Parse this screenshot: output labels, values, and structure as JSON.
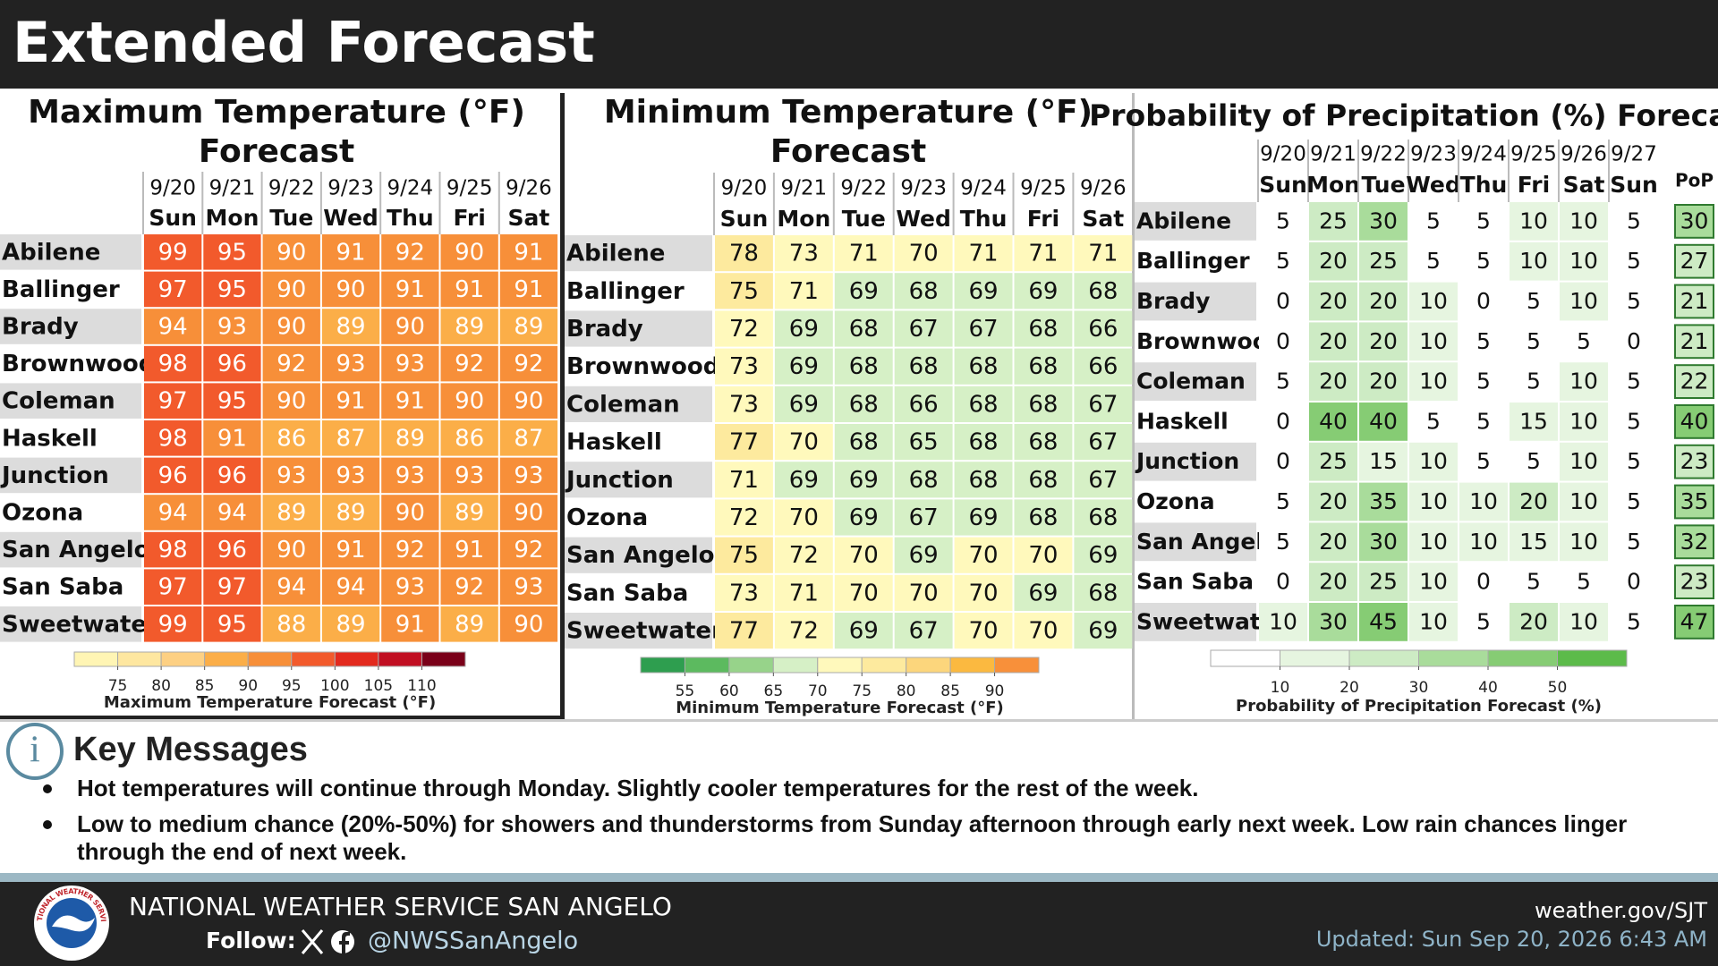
{
  "header": {
    "title": "Extended Forecast"
  },
  "tables": [
    {
      "title_lines": [
        "Maximum Temperature (°F)",
        "Forecast"
      ],
      "dates": [
        "9/20",
        "9/21",
        "9/22",
        "9/23",
        "9/24",
        "9/25",
        "9/26"
      ],
      "days": [
        "Sun",
        "Mon",
        "Tue",
        "Wed",
        "Thu",
        "Fri",
        "Sat"
      ],
      "rows": [
        {
          "city": "Abilene",
          "values": [
            99,
            95,
            90,
            91,
            92,
            90,
            91
          ]
        },
        {
          "city": "Ballinger",
          "values": [
            97,
            95,
            90,
            90,
            91,
            91,
            91
          ]
        },
        {
          "city": "Brady",
          "values": [
            94,
            93,
            90,
            89,
            90,
            89,
            89
          ]
        },
        {
          "city": "Brownwood",
          "values": [
            98,
            96,
            92,
            93,
            93,
            92,
            92
          ]
        },
        {
          "city": "Coleman",
          "values": [
            97,
            95,
            90,
            91,
            91,
            90,
            90
          ]
        },
        {
          "city": "Haskell",
          "values": [
            98,
            91,
            86,
            87,
            89,
            86,
            87
          ]
        },
        {
          "city": "Junction",
          "values": [
            96,
            96,
            93,
            93,
            93,
            93,
            93
          ]
        },
        {
          "city": "Ozona",
          "values": [
            94,
            94,
            89,
            89,
            90,
            89,
            90
          ]
        },
        {
          "city": "San Angelo",
          "values": [
            98,
            96,
            90,
            91,
            92,
            91,
            92
          ]
        },
        {
          "city": "San Saba",
          "values": [
            97,
            97,
            94,
            94,
            93,
            92,
            93
          ]
        },
        {
          "city": "Sweetwater",
          "values": [
            99,
            95,
            88,
            89,
            91,
            89,
            90
          ]
        }
      ],
      "legend": {
        "ticks": [
          75,
          80,
          85,
          90,
          95,
          100,
          105,
          110
        ],
        "colors": [
          "#fff5b4",
          "#fee7a0",
          "#fdd083",
          "#fbae48",
          "#f78f39",
          "#f25a2c",
          "#e32a1e",
          "#c10f22",
          "#7a0019"
        ],
        "label": "Maximum Temperature Forecast (°F)"
      }
    },
    {
      "title_lines": [
        "Minimum Temperature (°F)",
        "Forecast"
      ],
      "dates": [
        "9/20",
        "9/21",
        "9/22",
        "9/23",
        "9/24",
        "9/25",
        "9/26"
      ],
      "days": [
        "Sun",
        "Mon",
        "Tue",
        "Wed",
        "Thu",
        "Fri",
        "Sat"
      ],
      "rows": [
        {
          "city": "Abilene",
          "values": [
            78,
            73,
            71,
            70,
            71,
            71,
            71
          ]
        },
        {
          "city": "Ballinger",
          "values": [
            75,
            71,
            69,
            68,
            69,
            69,
            68
          ]
        },
        {
          "city": "Brady",
          "values": [
            72,
            69,
            68,
            67,
            67,
            68,
            66
          ]
        },
        {
          "city": "Brownwood",
          "values": [
            73,
            69,
            68,
            68,
            68,
            68,
            66
          ]
        },
        {
          "city": "Coleman",
          "values": [
            73,
            69,
            68,
            66,
            68,
            68,
            67
          ]
        },
        {
          "city": "Haskell",
          "values": [
            77,
            70,
            68,
            65,
            68,
            68,
            67
          ]
        },
        {
          "city": "Junction",
          "values": [
            71,
            69,
            69,
            68,
            68,
            68,
            67
          ]
        },
        {
          "city": "Ozona",
          "values": [
            72,
            70,
            69,
            67,
            69,
            68,
            68
          ]
        },
        {
          "city": "San Angelo",
          "values": [
            75,
            72,
            70,
            69,
            70,
            70,
            69
          ]
        },
        {
          "city": "San Saba",
          "values": [
            73,
            71,
            70,
            70,
            70,
            69,
            68
          ]
        },
        {
          "city": "Sweetwater",
          "values": [
            77,
            72,
            69,
            67,
            70,
            70,
            69
          ]
        }
      ],
      "legend": {
        "ticks": [
          55,
          60,
          65,
          70,
          75,
          80,
          85,
          90
        ],
        "colors": [
          "#2e9e4f",
          "#5cba5f",
          "#97d38a",
          "#d6f0c6",
          "#fff9bc",
          "#fdea9e",
          "#fcd67c",
          "#fbb940",
          "#f8903a"
        ],
        "label": "Minimum Temperature Forecast (°F)"
      }
    },
    {
      "title_lines": [
        "Probability of Precipitation (%) Forecast"
      ],
      "dates": [
        "9/20",
        "9/21",
        "9/22",
        "9/23",
        "9/24",
        "9/25",
        "9/26",
        "9/27"
      ],
      "days": [
        "Sun",
        "Mon",
        "Tue",
        "Wed",
        "Thu",
        "Fri",
        "Sat",
        "Sun"
      ],
      "pop_header": "PoP",
      "rows": [
        {
          "city": "Abilene",
          "values": [
            5,
            25,
            30,
            5,
            5,
            10,
            10,
            5
          ],
          "pop": 30
        },
        {
          "city": "Ballinger",
          "values": [
            5,
            20,
            25,
            5,
            5,
            10,
            10,
            5
          ],
          "pop": 27
        },
        {
          "city": "Brady",
          "values": [
            0,
            20,
            20,
            10,
            0,
            5,
            10,
            5
          ],
          "pop": 21
        },
        {
          "city": "Brownwood",
          "values": [
            0,
            20,
            20,
            10,
            5,
            5,
            5,
            0
          ],
          "pop": 21
        },
        {
          "city": "Coleman",
          "values": [
            5,
            20,
            20,
            10,
            5,
            5,
            10,
            5
          ],
          "pop": 22
        },
        {
          "city": "Haskell",
          "values": [
            0,
            40,
            40,
            5,
            5,
            15,
            10,
            5
          ],
          "pop": 40
        },
        {
          "city": "Junction",
          "values": [
            0,
            25,
            15,
            10,
            5,
            5,
            10,
            5
          ],
          "pop": 23
        },
        {
          "city": "Ozona",
          "values": [
            5,
            20,
            35,
            10,
            10,
            20,
            10,
            5
          ],
          "pop": 35
        },
        {
          "city": "San Angelo",
          "values": [
            5,
            20,
            30,
            10,
            10,
            15,
            10,
            5
          ],
          "pop": 32
        },
        {
          "city": "San Saba",
          "values": [
            0,
            20,
            25,
            10,
            0,
            5,
            5,
            0
          ],
          "pop": 23
        },
        {
          "city": "Sweetwater",
          "values": [
            10,
            30,
            45,
            10,
            5,
            20,
            10,
            5
          ],
          "pop": 47
        }
      ],
      "legend": {
        "ticks": [
          10,
          20,
          30,
          40,
          50
        ],
        "colors": [
          "#ffffff",
          "#e6f5e0",
          "#cdebc4",
          "#a9dc9b",
          "#86cc74",
          "#5cbb4a"
        ],
        "label": "Probability of Precipitation Forecast (%)"
      }
    }
  ],
  "key_messages": {
    "title": "Key Messages",
    "items": [
      "Hot temperatures will continue through Monday. Slightly cooler temperatures for the rest of the week.",
      "Low to medium chance (20%-50%) for showers and thunderstorms from Sunday afternoon through early next week. Low rain chances linger through the end of next week."
    ]
  },
  "footer": {
    "office": "NATIONAL WEATHER SERVICE SAN ANGELO",
    "follow": "Follow:",
    "handle": "@NWSSanAngelo",
    "website": "weather.gov/SJT",
    "updated": "Updated: Sun Sep 20, 2026 6:43 AM",
    "logo_text": "NATIONAL WEATHER SERVICE"
  }
}
